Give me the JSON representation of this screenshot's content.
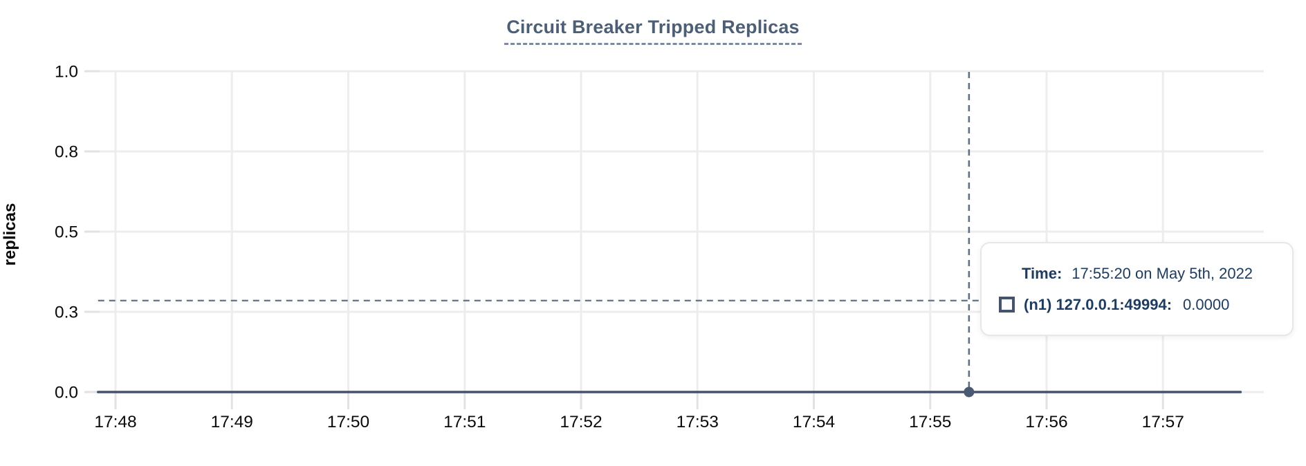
{
  "title": "Circuit Breaker Tripped Replicas",
  "y_axis_title": "replicas",
  "colors": {
    "background": "#ffffff",
    "title_text": "#4d5f77",
    "title_underline": "#7b89a1",
    "axis_text": "#0a0a0a",
    "gridline": "#ededed",
    "tick_mark": "#e2e2e2",
    "series_line": "#42536b",
    "highlight_dot": "#4a5a73",
    "crosshair": "#5e7187",
    "tooltip_text": "#1d3c63",
    "tooltip_border": "#e7e7ea"
  },
  "chart_data": {
    "type": "line",
    "title": "Circuit Breaker Tripped Replicas",
    "xlabel": "",
    "ylabel": "replicas",
    "ylim": [
      0,
      1
    ],
    "grid": true,
    "x_ticks": [
      "17:48",
      "17:49",
      "17:50",
      "17:51",
      "17:52",
      "17:53",
      "17:54",
      "17:55",
      "17:56",
      "17:57"
    ],
    "y_ticks": [
      {
        "label": "0.0",
        "value": 0
      },
      {
        "label": "0.3",
        "value": 0.25
      },
      {
        "label": "0.5",
        "value": 0.5
      },
      {
        "label": "0.8",
        "value": 0.75
      },
      {
        "label": "1.0",
        "value": 1.0
      }
    ],
    "series": [
      {
        "name": "(n1) 127.0.0.1:49994",
        "color": "#42536b",
        "points": [
          {
            "time": "17:47:51",
            "value": 0
          },
          {
            "time": "17:57:40",
            "value": 0
          }
        ]
      }
    ],
    "highlight_point": {
      "time": "17:55:20",
      "value": 0,
      "series": "(n1) 127.0.0.1:49994"
    },
    "crosshair": {
      "time": "17:55:18",
      "y_value": 0.285
    },
    "legend_position": "tooltip-only"
  },
  "tooltip": {
    "time_label": "Time:",
    "time_value": "17:55:20 on May 5th, 2022",
    "series_label": "(n1) 127.0.0.1:49994:",
    "series_value": "0.0000"
  }
}
